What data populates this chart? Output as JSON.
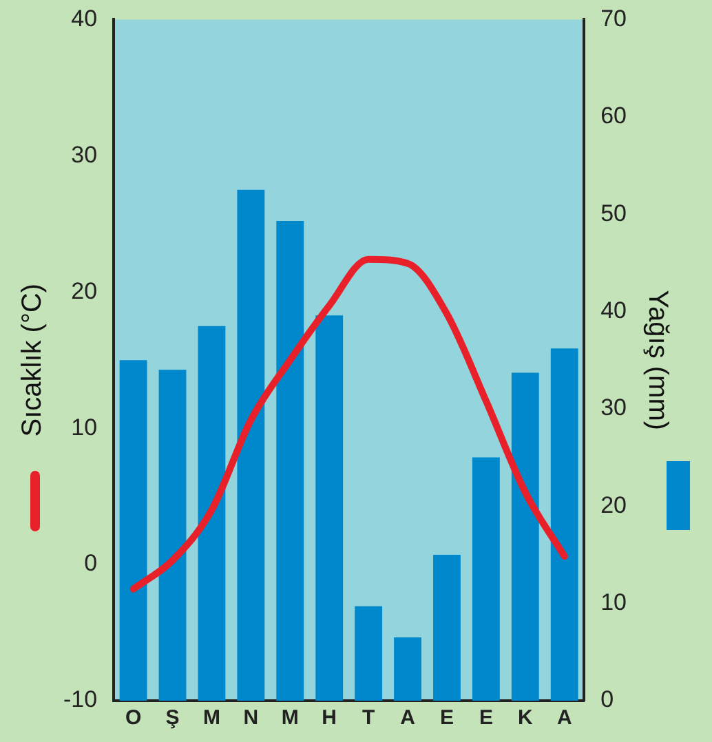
{
  "chart_data": {
    "type": "bar",
    "ylabel": "Sıcaklık (°C)",
    "y2label": "Yağış (mm)",
    "categories": [
      "O",
      "Ş",
      "M",
      "N",
      "M",
      "H",
      "T",
      "A",
      "E",
      "E",
      "K",
      "A"
    ],
    "series": [
      {
        "axis": "y2",
        "color": "#0088cc",
        "values": [
          35,
          34,
          38.5,
          52.5,
          49.3,
          39.6,
          9.7,
          6.5,
          15,
          25,
          33.7,
          36.2
        ]
      },
      {
        "type": "line",
        "axis": "y",
        "color": "#e8202a",
        "marker": "none",
        "values": [
          -1.8,
          0.3,
          4,
          10.6,
          15,
          19,
          22.4,
          22.1,
          18.4,
          12,
          5.3,
          0.6
        ]
      }
    ],
    "ylim": [
      -10,
      40
    ],
    "yticks": [
      -10,
      0,
      10,
      20,
      30,
      40
    ],
    "y2lim": [
      0,
      70
    ],
    "y2ticks": [
      0,
      10,
      20,
      30,
      40,
      50,
      60,
      70
    ],
    "grid": false,
    "legend": false
  }
}
